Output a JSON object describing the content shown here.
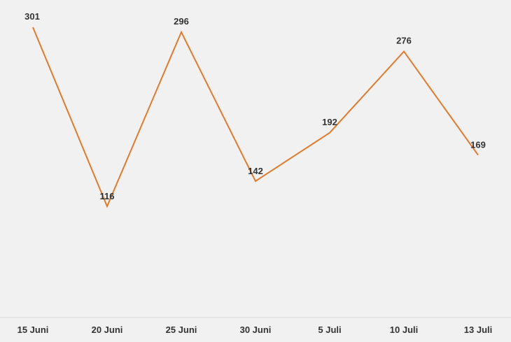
{
  "chart_data": {
    "type": "line",
    "x": [
      "15 Juni",
      "20 Juni",
      "25 Juni",
      "30 Juni",
      "5 Juli",
      "10 Juli",
      "13 Juli"
    ],
    "series": [
      {
        "values": [
          301,
          116,
          296,
          142,
          192,
          276,
          169
        ]
      }
    ],
    "data_labels": [
      "301",
      "116",
      "296",
      "142",
      "192",
      "276",
      "169"
    ],
    "title": "",
    "xlabel": "",
    "ylabel": "",
    "grid": false,
    "legend": "none",
    "colors": {
      "line": "#e07b2e",
      "background": "#f2f1f1",
      "axis": "#d9d9d9",
      "text": "#333333"
    }
  }
}
